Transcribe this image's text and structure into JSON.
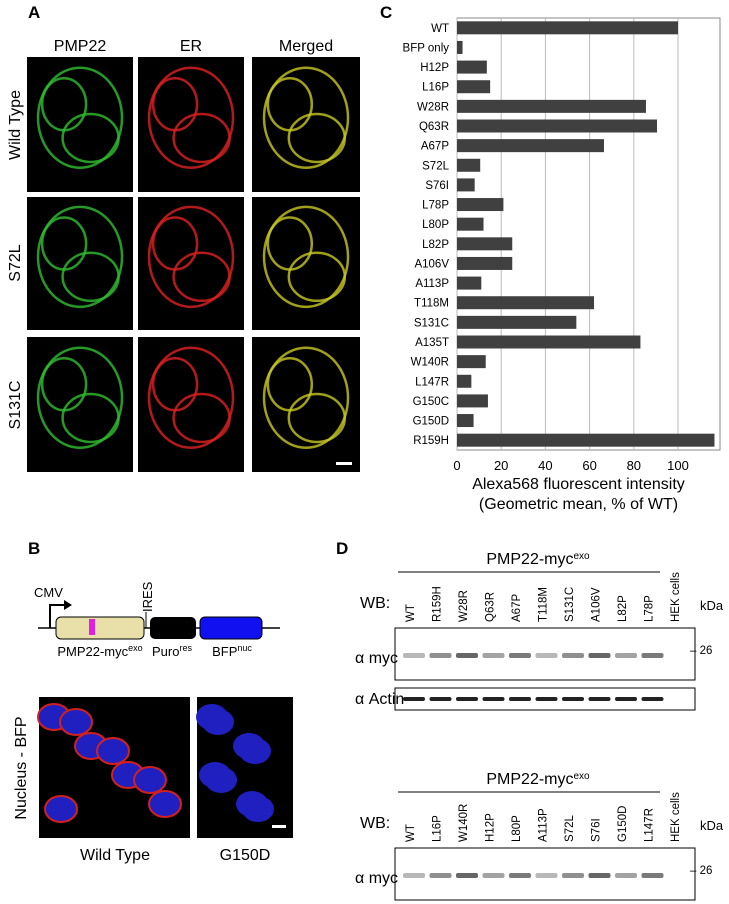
{
  "panel_a": {
    "label": "A",
    "columns": [
      "PMP22",
      "ER",
      "Merged"
    ],
    "rows": [
      "Wild Type",
      "S72L",
      "S131C"
    ]
  },
  "panel_b": {
    "label": "B",
    "promoter": "CMV",
    "ires": "IRES",
    "genes": [
      {
        "text": "PMP22-myc",
        "sup": "exo"
      },
      {
        "text": "Puro",
        "sup": "res"
      },
      {
        "text": "BFP",
        "sup": "nuc"
      }
    ],
    "side_label": "Nucleus - BFP",
    "images": [
      "Wild Type",
      "G150D"
    ]
  },
  "panel_c": {
    "label": "C"
  },
  "chart_data": {
    "type": "bar",
    "orientation": "horizontal",
    "categories": [
      "WT",
      "BFP only",
      "H12P",
      "L16P",
      "W28R",
      "Q63R",
      "A67P",
      "S72L",
      "S76I",
      "L78P",
      "L80P",
      "L82P",
      "A106V",
      "A113P",
      "T118M",
      "S131C",
      "A135T",
      "W140R",
      "L147R",
      "G150C",
      "G150D",
      "R159H"
    ],
    "values": [
      100,
      2.5,
      13.5,
      15,
      85.5,
      90.5,
      66.5,
      10.5,
      8,
      21,
      12,
      25,
      25,
      11,
      62,
      54,
      83,
      13,
      6.5,
      14,
      7.5,
      116.5
    ],
    "color": "#404040",
    "xlim": [
      0,
      119
    ],
    "xticks": [
      0,
      20,
      40,
      60,
      80,
      100
    ],
    "grid": true,
    "x_label": [
      "Alexa568 fluorescent intensity",
      "(Geometric mean, % of WT)"
    ]
  },
  "panel_d": {
    "label": "D",
    "blots": [
      {
        "title": {
          "text": "PMP22-myc",
          "sup": "exo"
        },
        "lanes": [
          "WT",
          "R159H",
          "W28R",
          "Q63R",
          "A67P",
          "T118M",
          "S131C",
          "A106V",
          "L82P",
          "L78P",
          "HEK cells"
        ]
      },
      {
        "title": {
          "text": "PMP22-myc",
          "sup": "exo"
        },
        "lanes": [
          "WT",
          "L16P",
          "W140R",
          "H12P",
          "L80P",
          "A113P",
          "S72L",
          "S76I",
          "G150D",
          "L147R",
          "HEK cells"
        ]
      }
    ],
    "wb": "WB:",
    "myc": "α myc",
    "actin": "α Actin",
    "kda": "kDa",
    "marker": "– 26"
  }
}
